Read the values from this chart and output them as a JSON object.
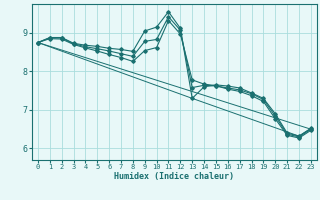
{
  "xlabel": "Humidex (Indice chaleur)",
  "background_color": "#e8f8f8",
  "grid_color": "#aadddd",
  "line_color": "#1a7070",
  "xlim": [
    -0.5,
    23.5
  ],
  "ylim": [
    5.7,
    9.75
  ],
  "yticks": [
    6,
    7,
    8,
    9
  ],
  "xticks": [
    0,
    1,
    2,
    3,
    4,
    5,
    6,
    7,
    8,
    9,
    10,
    11,
    12,
    13,
    14,
    15,
    16,
    17,
    18,
    19,
    20,
    21,
    22,
    23
  ],
  "series": [
    {
      "x": [
        0,
        1,
        2,
        3,
        4,
        5,
        6,
        7,
        8,
        9,
        10,
        11,
        12,
        13,
        14,
        15,
        16,
        17,
        18,
        19,
        20,
        21,
        22,
        23
      ],
      "y": [
        8.75,
        8.88,
        8.88,
        8.73,
        8.68,
        8.65,
        8.6,
        8.57,
        8.52,
        9.05,
        9.15,
        9.55,
        9.12,
        7.3,
        7.6,
        7.65,
        7.62,
        7.57,
        7.44,
        7.3,
        6.9,
        6.4,
        6.32,
        6.52
      ]
    },
    {
      "x": [
        0,
        1,
        2,
        3,
        4,
        5,
        6,
        7,
        8,
        9,
        10,
        11,
        12,
        13,
        14,
        15,
        16,
        17,
        18,
        19,
        20,
        21,
        22,
        23
      ],
      "y": [
        8.75,
        8.87,
        8.87,
        8.72,
        8.64,
        8.59,
        8.53,
        8.46,
        8.39,
        8.78,
        8.83,
        9.42,
        9.07,
        7.58,
        7.64,
        7.62,
        7.57,
        7.52,
        7.42,
        7.27,
        6.84,
        6.37,
        6.3,
        6.5
      ]
    },
    {
      "x": [
        0,
        1,
        2,
        3,
        4,
        5,
        6,
        7,
        8,
        9,
        10,
        11,
        12,
        13,
        14,
        15,
        16,
        17,
        18,
        19,
        20,
        21,
        22,
        23
      ],
      "y": [
        8.75,
        8.85,
        8.84,
        8.7,
        8.61,
        8.53,
        8.44,
        8.36,
        8.26,
        8.54,
        8.62,
        9.32,
        8.97,
        7.78,
        7.67,
        7.63,
        7.54,
        7.48,
        7.37,
        7.22,
        6.77,
        6.34,
        6.27,
        6.47
      ]
    },
    {
      "x": [
        0,
        23
      ],
      "y": [
        8.75,
        6.5
      ],
      "no_marker": true
    },
    {
      "x": [
        0,
        13,
        22,
        23
      ],
      "y": [
        8.75,
        7.3,
        6.32,
        6.52
      ],
      "no_marker": true
    }
  ]
}
